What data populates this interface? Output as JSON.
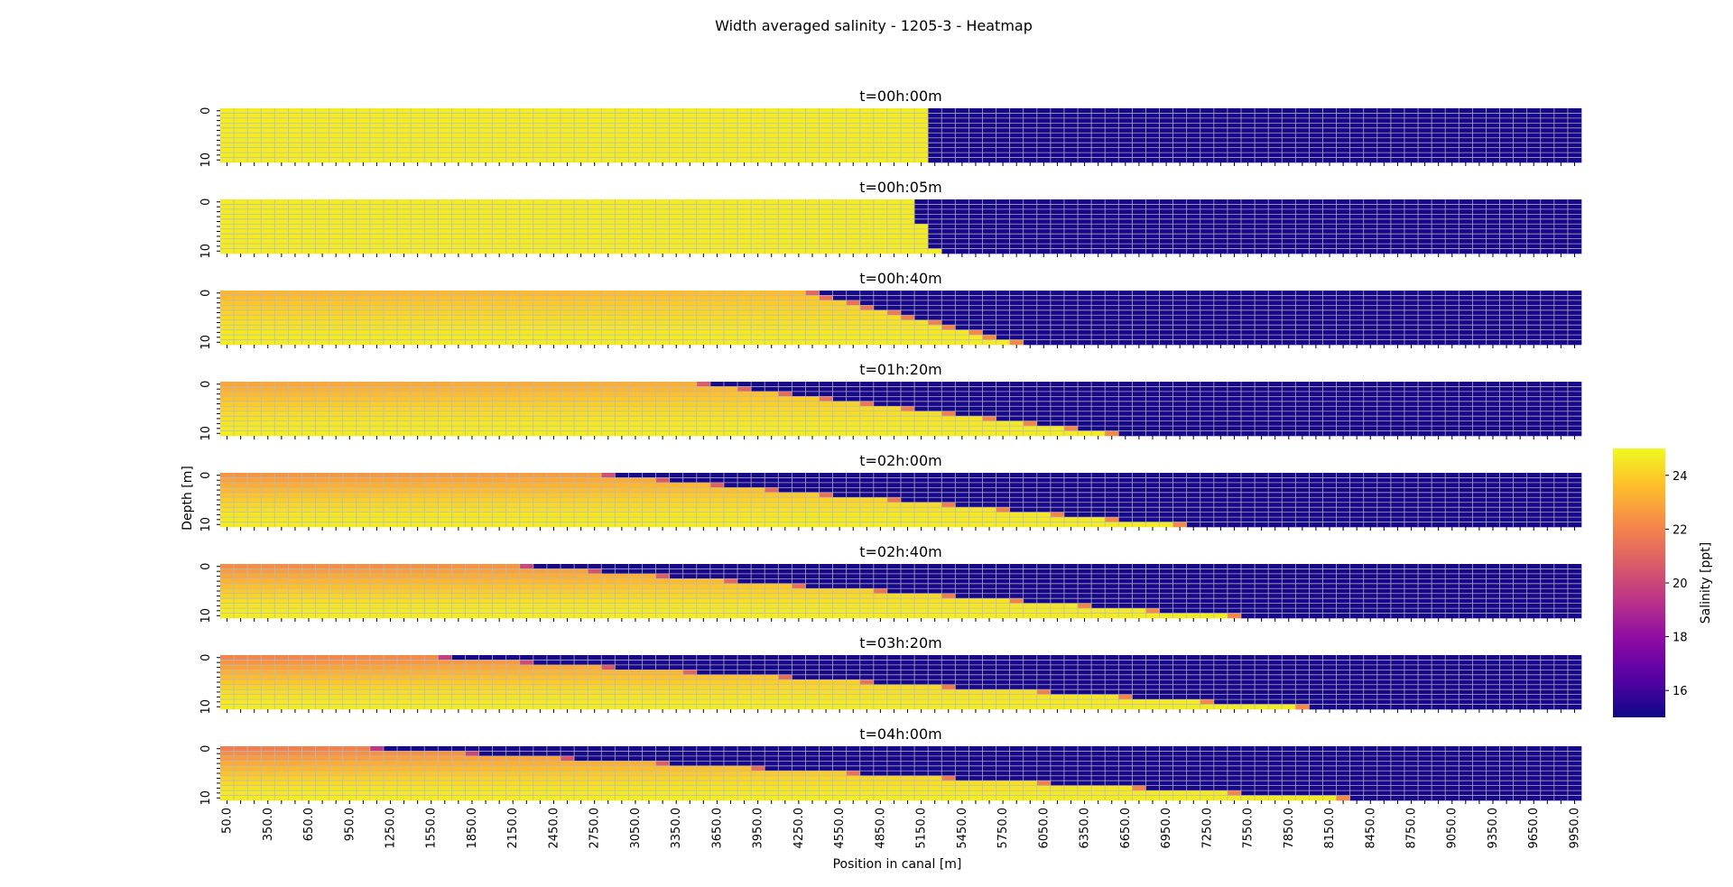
{
  "chart_data": {
    "type": "heatmap",
    "title": "Width averaged salinity - 1205-3 - Heatmap",
    "xlabel": "Position in canal [m]",
    "ylabel": "Depth [m]",
    "colormap": "plasma",
    "colorbar": {
      "label": "Salinity [ppt]",
      "range": [
        15.0,
        25.0
      ],
      "ticks": [
        16,
        18,
        20,
        22,
        24
      ]
    },
    "grid": true,
    "x_positions": {
      "start": 50,
      "step": 100,
      "count": 100
    },
    "x_tick_labels": [
      "50.0",
      "350.0",
      "650.0",
      "950.0",
      "1250.0",
      "1550.0",
      "1850.0",
      "2150.0",
      "2450.0",
      "2750.0",
      "3050.0",
      "3350.0",
      "3650.0",
      "3950.0",
      "4250.0",
      "4550.0",
      "4850.0",
      "5150.0",
      "5450.0",
      "5750.0",
      "6050.0",
      "6350.0",
      "6650.0",
      "6950.0",
      "7250.0",
      "7550.0",
      "7850.0",
      "8150.0",
      "8450.0",
      "8750.0",
      "9050.0",
      "9350.0",
      "9650.0",
      "9950.0"
    ],
    "depth_levels": {
      "start": 0,
      "step": 1,
      "count": 11
    },
    "y_tick_labels": [
      "0",
      "10"
    ],
    "salinity_extremes": {
      "salt": 24.7,
      "fresh": 15.2
    },
    "panels": [
      {
        "time": "t=00h:00m",
        "front_top_m": 5150,
        "front_bottom_m": 5150,
        "surface_mix": 0.0
      },
      {
        "time": "t=00h:05m",
        "front_top_m": 5050,
        "front_bottom_m": 5250,
        "surface_mix": 0.0
      },
      {
        "time": "t=00h:40m",
        "front_top_m": 4350,
        "front_bottom_m": 5850,
        "surface_mix": 0.3
      },
      {
        "time": "t=01h:20m",
        "front_top_m": 3550,
        "front_bottom_m": 6550,
        "surface_mix": 0.4
      },
      {
        "time": "t=02h:00m",
        "front_top_m": 2850,
        "front_bottom_m": 7050,
        "surface_mix": 0.5
      },
      {
        "time": "t=02h:40m",
        "front_top_m": 2250,
        "front_bottom_m": 7450,
        "surface_mix": 0.55
      },
      {
        "time": "t=03h:20m",
        "front_top_m": 1650,
        "front_bottom_m": 7950,
        "surface_mix": 0.6
      },
      {
        "time": "t=04h:00m",
        "front_top_m": 1150,
        "front_bottom_m": 8250,
        "surface_mix": 0.65
      }
    ]
  }
}
